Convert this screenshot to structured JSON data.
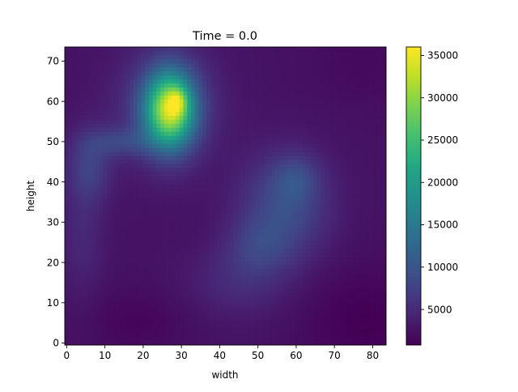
{
  "chart_data": {
    "type": "heatmap",
    "title": "Time = 0.0",
    "xlabel": "width",
    "ylabel": "height",
    "x_ticks": [
      0,
      10,
      20,
      30,
      40,
      50,
      60,
      70,
      80
    ],
    "y_ticks": [
      0,
      10,
      20,
      30,
      40,
      50,
      60,
      70
    ],
    "xlim": [
      -0.5,
      83.5
    ],
    "ylim": [
      -0.5,
      73.5
    ],
    "grid_width": 84,
    "grid_height": 74,
    "colormap": "viridis",
    "colorbar": {
      "vmin": 800,
      "vmax": 36000,
      "ticks": [
        5000,
        10000,
        15000,
        20000,
        25000,
        30000,
        35000
      ]
    },
    "background_value": 2500,
    "blobs": [
      {
        "name": "bright-upper-left",
        "cx": 27,
        "cy": 58,
        "sx": 4.5,
        "sy": 6.5,
        "peak": 27000
      },
      {
        "name": "bright-upper-left-core",
        "cx": 29,
        "cy": 60,
        "sx": 1.6,
        "sy": 2.2,
        "peak": 7000
      },
      {
        "name": "upper-left-halo",
        "cx": 26,
        "cy": 59,
        "sx": 9,
        "sy": 10,
        "peak": 5000
      },
      {
        "name": "tail-left",
        "cx": 6,
        "cy": 44,
        "sx": 4,
        "sy": 6,
        "peak": 4500
      },
      {
        "name": "tail-bridge",
        "cx": 14,
        "cy": 50,
        "sx": 6,
        "sy": 2.5,
        "peak": 4500
      },
      {
        "name": "mid-right-cloud",
        "cx": 57,
        "cy": 34,
        "sx": 8,
        "sy": 9,
        "peak": 6500
      },
      {
        "name": "mid-right-upper",
        "cx": 60,
        "cy": 41,
        "sx": 4,
        "sy": 4,
        "peak": 3500
      },
      {
        "name": "mid-right-lower",
        "cx": 50,
        "cy": 24,
        "sx": 6,
        "sy": 5,
        "peak": 3500
      },
      {
        "name": "lower-diffuse",
        "cx": 45,
        "cy": 15,
        "sx": 9,
        "sy": 6,
        "peak": 2500
      },
      {
        "name": "left-diffuse",
        "cx": 4,
        "cy": 28,
        "sx": 4,
        "sy": 12,
        "peak": 2200
      }
    ],
    "low_regions": [
      {
        "name": "bottom-right-dark",
        "cx": 78,
        "cy": 5,
        "sx": 12,
        "sy": 10,
        "depth": 1700
      },
      {
        "name": "bottom-left-dark",
        "cx": 18,
        "cy": 5,
        "sx": 10,
        "sy": 6,
        "depth": 1200
      },
      {
        "name": "top-right-dark",
        "cx": 78,
        "cy": 70,
        "sx": 10,
        "sy": 8,
        "depth": 800
      }
    ]
  }
}
